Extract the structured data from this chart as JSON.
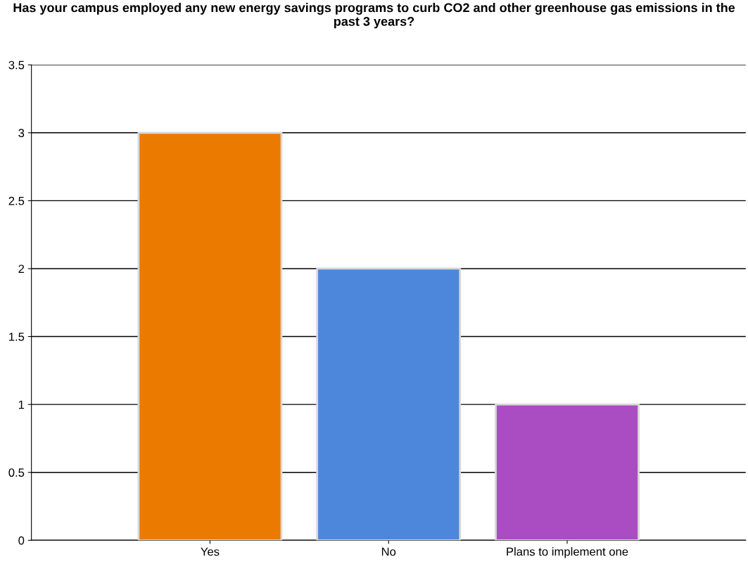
{
  "chart_data": {
    "type": "bar",
    "title": "Has your campus employed any new energy savings programs to curb CO2 and other greenhouse gas emissions in the past 3 years?",
    "categories": [
      "Yes",
      "No",
      "Plans to implement one"
    ],
    "values": [
      3,
      2,
      1
    ],
    "colors": [
      "#eb7a00",
      "#4d87dc",
      "#aa4cc2"
    ],
    "ylim": [
      0,
      3.5
    ],
    "yticks": [
      0,
      0.5,
      1,
      1.5,
      2,
      2.5,
      3,
      3.5
    ],
    "grid": "y"
  }
}
